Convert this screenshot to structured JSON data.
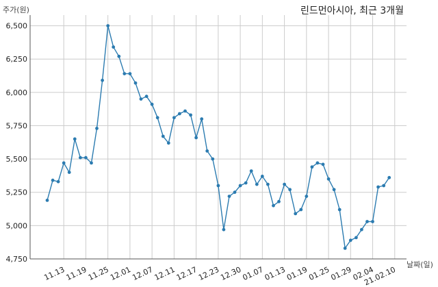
{
  "chart_data": {
    "type": "line",
    "title": "린드먼아시아, 최근 3개월",
    "xlabel": "날짜(일)",
    "ylabel": "주가(원)",
    "ylim": [
      4750,
      6580
    ],
    "y_ticks": [
      4750,
      5000,
      5250,
      5500,
      5750,
      6000,
      6250,
      6500
    ],
    "y_tick_labels": [
      "4,750",
      "5,000",
      "5,250",
      "5,500",
      "5,750",
      "6,000",
      "6,250",
      "6,500"
    ],
    "x_ticks": [
      {
        "index": 3,
        "label": "11.13"
      },
      {
        "index": 7,
        "label": "11.19"
      },
      {
        "index": 11,
        "label": "11.25"
      },
      {
        "index": 15,
        "label": "12.01"
      },
      {
        "index": 19,
        "label": "12.07"
      },
      {
        "index": 23,
        "label": "12.11"
      },
      {
        "index": 27,
        "label": "12.17"
      },
      {
        "index": 31,
        "label": "12.23"
      },
      {
        "index": 35,
        "label": "12.30"
      },
      {
        "index": 39,
        "label": "01.07"
      },
      {
        "index": 43,
        "label": "01.13"
      },
      {
        "index": 47,
        "label": "01.19"
      },
      {
        "index": 51,
        "label": "01.25"
      },
      {
        "index": 55,
        "label": "01.29"
      },
      {
        "index": 59,
        "label": "02.04"
      },
      {
        "index": 63,
        "label": "21.02.10"
      }
    ],
    "grid": true,
    "colors": {
      "line": "#2b7bb0",
      "marker": "#2b7bb0",
      "grid": "#cccccc",
      "axis": "#555555"
    },
    "series": [
      {
        "values": [
          5190,
          5340,
          5330,
          5470,
          5400,
          5650,
          5510,
          5510,
          5470,
          5730,
          6090,
          6500,
          6340,
          6270,
          6140,
          6140,
          6070,
          5950,
          5970,
          5910,
          5810,
          5670,
          5620,
          5810,
          5840,
          5860,
          5830,
          5660,
          5800,
          5560,
          5500,
          5300,
          4970,
          5220,
          5250,
          5300,
          5320,
          5410,
          5310,
          5370,
          5310,
          5150,
          5180,
          5310,
          5270,
          5090,
          5120,
          5220,
          5440,
          5470,
          5460,
          5350,
          5270,
          5120,
          4830,
          4890,
          4910,
          4970,
          5030,
          5030,
          5290,
          5300,
          5360
        ]
      }
    ]
  }
}
